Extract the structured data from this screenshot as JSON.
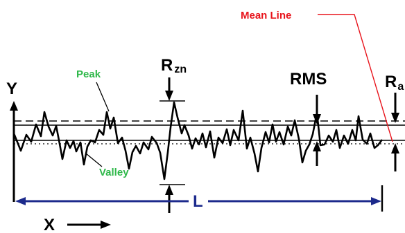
{
  "labels": {
    "mean_line": "Mean Line",
    "peak": "Peak",
    "valley": "Valley",
    "rzn_main": "R",
    "rzn_sub": "zn",
    "rms": "RMS",
    "ra_main": "R",
    "ra_sub": "a",
    "y_axis": "Y",
    "x_axis": "X",
    "length": "L"
  },
  "colors": {
    "mean_line": "#e8141c",
    "peak_valley": "#2fb84a",
    "length": "#1c2a8c",
    "profile": "#000000"
  }
}
